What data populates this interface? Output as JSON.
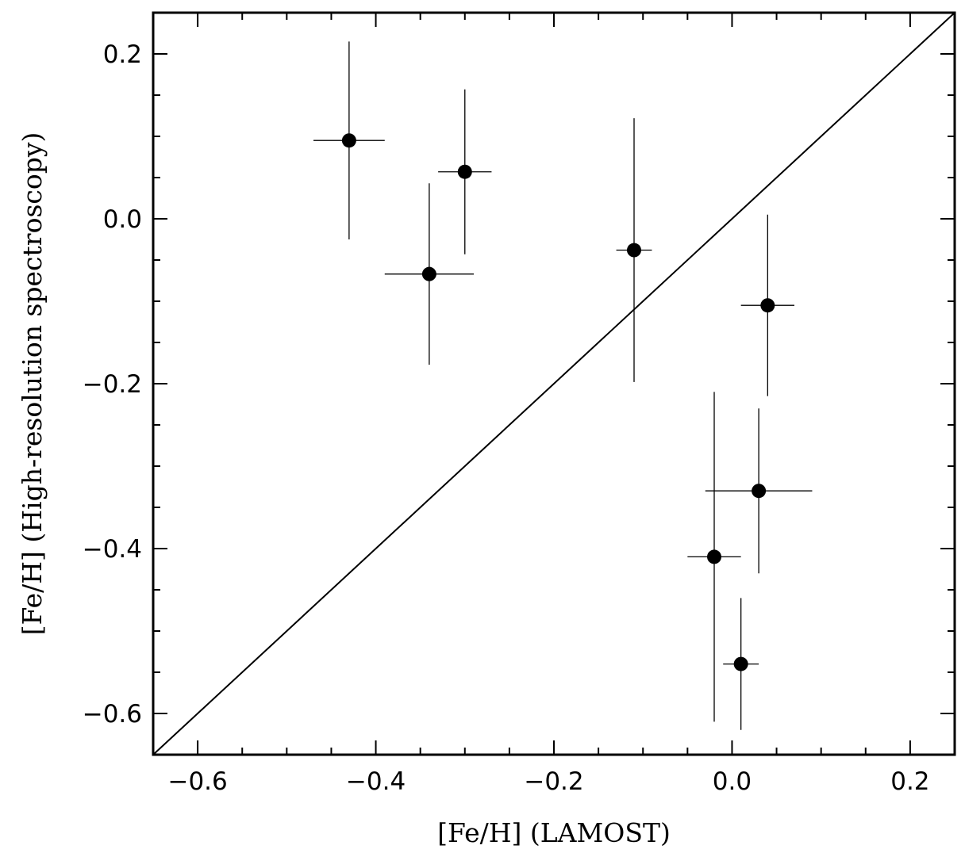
{
  "chart_data": {
    "type": "scatter",
    "title": "",
    "xlabel": "[Fe/H] (LAMOST)",
    "ylabel": "[Fe/H] (High-resolution spectroscopy)",
    "xlim": [
      -0.65,
      0.25
    ],
    "ylim": [
      -0.65,
      0.25
    ],
    "x_major_ticks": [
      -0.6,
      -0.4,
      -0.2,
      0.0,
      0.2
    ],
    "x_tick_labels": [
      "−0.6",
      "−0.4",
      "−0.2",
      "0.0",
      "0.2"
    ],
    "y_major_ticks": [
      -0.6,
      -0.4,
      -0.2,
      0.0,
      0.2
    ],
    "y_tick_labels": [
      "−0.6",
      "−0.4",
      "−0.2",
      "0.0",
      "0.2"
    ],
    "minor_tick_step": 0.05,
    "grid": false,
    "legend": "none",
    "reference_line": {
      "type": "one-to-one",
      "slope": 1,
      "intercept": 0
    },
    "points": [
      {
        "x": -0.43,
        "y": 0.095,
        "xerr": 0.04,
        "yerr_plus": 0.12,
        "yerr_minus": 0.12
      },
      {
        "x": -0.3,
        "y": 0.057,
        "xerr": 0.03,
        "yerr_plus": 0.1,
        "yerr_minus": 0.1
      },
      {
        "x": -0.34,
        "y": -0.067,
        "xerr": 0.05,
        "yerr_plus": 0.11,
        "yerr_minus": 0.11
      },
      {
        "x": -0.11,
        "y": -0.038,
        "xerr": 0.02,
        "yerr_plus": 0.16,
        "yerr_minus": 0.16
      },
      {
        "x": 0.04,
        "y": -0.105,
        "xerr": 0.03,
        "yerr_plus": 0.11,
        "yerr_minus": 0.11
      },
      {
        "x": 0.03,
        "y": -0.33,
        "xerr": 0.06,
        "yerr_plus": 0.1,
        "yerr_minus": 0.1
      },
      {
        "x": -0.02,
        "y": -0.41,
        "xerr": 0.03,
        "yerr_plus": 0.2,
        "yerr_minus": 0.2
      },
      {
        "x": 0.01,
        "y": -0.54,
        "xerr": 0.02,
        "yerr_plus": 0.08,
        "yerr_minus": 0.08
      }
    ],
    "colors": {
      "marker": "#000000",
      "line": "#000000",
      "background": "#ffffff"
    }
  }
}
